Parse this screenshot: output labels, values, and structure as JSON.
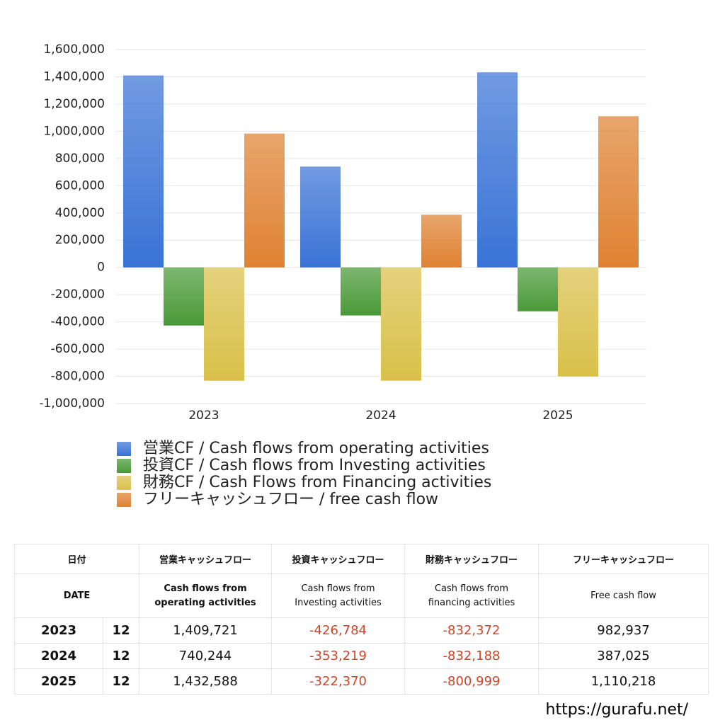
{
  "chart_data": {
    "type": "bar",
    "categories": [
      "2023",
      "2024",
      "2025"
    ],
    "series": [
      {
        "name": "営業CF / Cash flows from operating activities",
        "color": "#3a73d6",
        "values": [
          1409721,
          740244,
          1432588
        ]
      },
      {
        "name": "投資CF / Cash flows from Investing activities",
        "color": "#4a9a38",
        "values": [
          -426784,
          -353219,
          -322370
        ]
      },
      {
        "name": "財務CF / Cash Flows from Financing activities",
        "color": "#d9c04a",
        "values": [
          -832372,
          -832188,
          -800999
        ]
      },
      {
        "name": "フリーキャッシュフロー / free cash flow",
        "color": "#df8232",
        "values": [
          982937,
          387025,
          1110218
        ]
      }
    ],
    "ylim": [
      -1000000,
      1600000
    ],
    "yticks": [
      {
        "value": -1000000,
        "label": "-1,000,000"
      },
      {
        "value": -800000,
        "label": "-800,000"
      },
      {
        "value": -600000,
        "label": "-600,000"
      },
      {
        "value": -400000,
        "label": "-400,000"
      },
      {
        "value": -200000,
        "label": "-200,000"
      },
      0,
      {
        "value": 200000,
        "label": "200,000"
      },
      {
        "value": 400000,
        "label": "400,000"
      },
      {
        "value": 600000,
        "label": "600,000"
      },
      {
        "value": 800000,
        "label": "800,000"
      },
      {
        "value": 1000000,
        "label": "1,000,000"
      },
      {
        "value": 1200000,
        "label": "1,200,000"
      },
      {
        "value": 1400000,
        "label": "1,400,000"
      },
      {
        "value": 1600000,
        "label": "1,600,000"
      }
    ],
    "grid": true
  },
  "table": {
    "headers": [
      "日付",
      "営業キャッシュフロー",
      "投資キャッシュフロー",
      "財務キャッシュフロー",
      "フリーキャッシュフロー"
    ],
    "subheaders": [
      "DATE",
      "Cash flows from\noperating activities",
      "Cash flows from\nInvesting activities",
      "Cash flows from\nfinancing activities",
      "Free cash flow"
    ],
    "rows": [
      [
        "2023",
        "12",
        "1,409,721",
        "-426,784",
        "-832,372",
        "982,937"
      ],
      [
        "2024",
        "12",
        "740,244",
        "-353,219",
        "-832,188",
        "387,025"
      ],
      [
        "2025",
        "12",
        "1,432,588",
        "-322,370",
        "-800,999",
        "1,110,218"
      ]
    ]
  },
  "footer": "https://gurafu.net/"
}
